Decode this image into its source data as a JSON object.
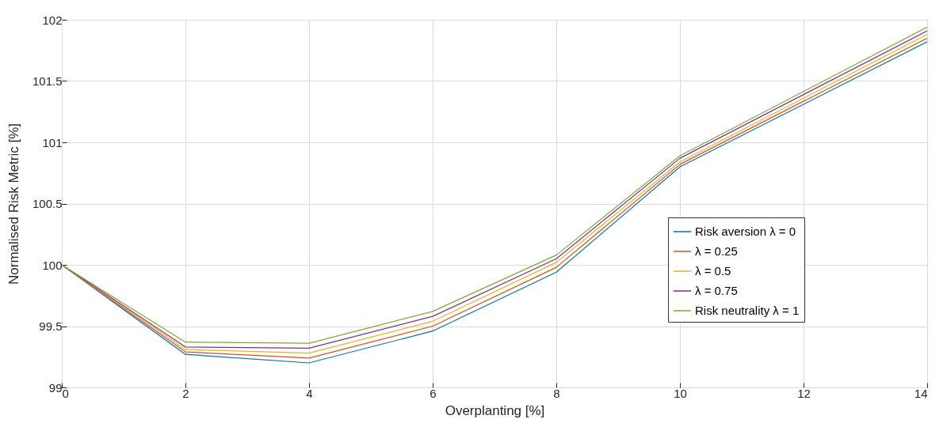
{
  "chart_data": {
    "type": "line",
    "xlabel": "Overplanting [%]",
    "ylabel": "Normalised Risk Metric [%]",
    "x": [
      0,
      2,
      4,
      6,
      8,
      10,
      14
    ],
    "series": [
      {
        "name": "Risk aversion λ = 0",
        "color": "#0072bd",
        "values": [
          100,
          99.27,
          99.2,
          99.46,
          99.94,
          100.8,
          101.82
        ]
      },
      {
        "name": "λ = 0.25",
        "color": "#d95319",
        "values": [
          100,
          99.29,
          99.24,
          99.5,
          99.98,
          100.82,
          101.85
        ]
      },
      {
        "name": "λ = 0.5",
        "color": "#edb120",
        "values": [
          100,
          99.31,
          99.28,
          99.54,
          100.02,
          100.84,
          101.88
        ]
      },
      {
        "name": "λ = 0.75",
        "color": "#7e2f8e",
        "values": [
          100,
          99.33,
          99.32,
          99.58,
          100.05,
          100.87,
          101.91
        ]
      },
      {
        "name": "Risk neutrality λ = 1",
        "color": "#77ac30",
        "values": [
          100,
          99.37,
          99.36,
          99.62,
          100.08,
          100.89,
          101.94
        ]
      }
    ],
    "xlim": [
      0,
      14
    ],
    "xticks": [
      0,
      2,
      4,
      6,
      8,
      10,
      12,
      14
    ],
    "ylim": [
      99,
      102
    ],
    "yticks": [
      99,
      99.5,
      100,
      100.5,
      101,
      101.5,
      102
    ],
    "grid": true,
    "legend": "right",
    "marker": "none",
    "line_style": "solid"
  }
}
